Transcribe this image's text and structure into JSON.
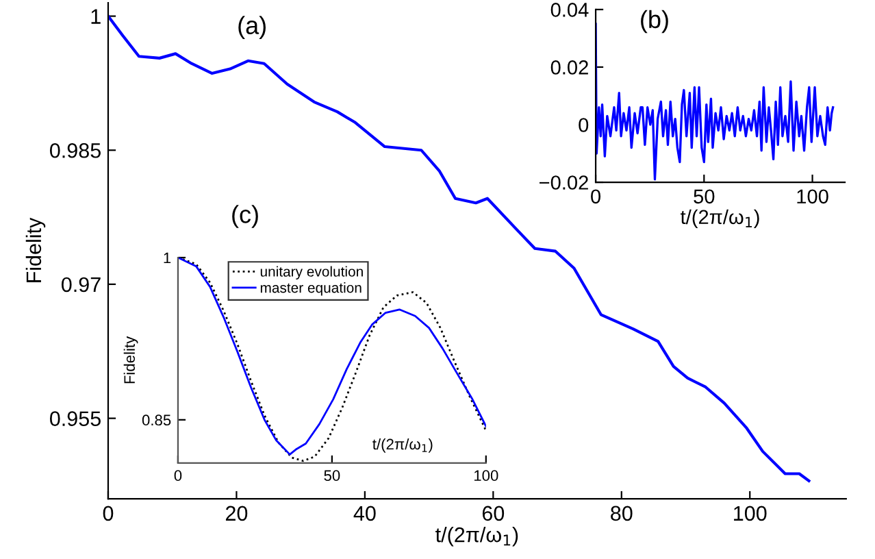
{
  "chart_data": [
    {
      "type": "line",
      "xlabel": "t/(2π/ω$_{1}$)",
      "ylabel": "Fidelity",
      "annotations": [
        "(a)"
      ],
      "xlim": [
        0,
        115
      ],
      "ylim": [
        0.946,
        1.0015
      ],
      "xticks": [
        0,
        20,
        40,
        60,
        80,
        100
      ],
      "yticks": [
        0.955,
        0.97,
        0.985,
        1
      ],
      "grid": false,
      "legend": false,
      "series": [
        {
          "color": "#0000ff",
          "line_style": "solid",
          "x": [
            0,
            2.3,
            4.8,
            8.0,
            10.5,
            13.0,
            16.2,
            19.0,
            21.8,
            24.3,
            27.9,
            32.1,
            35.7,
            38.5,
            43.1,
            48.8,
            51.6,
            54.1,
            57.3,
            59.1,
            63.7,
            66.5,
            69.7,
            72.6,
            76.8,
            81.8,
            85.7,
            88.1,
            90.3,
            93.1,
            96.0,
            99.5,
            102.0,
            105.5,
            107.7,
            109.2
          ],
          "values": [
            1.0,
            0.9978,
            0.9955,
            0.9953,
            0.9958,
            0.9947,
            0.9936,
            0.9941,
            0.995,
            0.9947,
            0.9924,
            0.9904,
            0.9893,
            0.9881,
            0.9854,
            0.985,
            0.9827,
            0.9796,
            0.9791,
            0.9796,
            0.9761,
            0.974,
            0.9737,
            0.9718,
            0.9666,
            0.965,
            0.9636,
            0.9608,
            0.9595,
            0.9585,
            0.9567,
            0.9539,
            0.9513,
            0.9488,
            0.9488,
            0.948
          ]
        }
      ]
    },
    {
      "type": "line",
      "xlabel": "t/(2π/ω$_{1}$)",
      "annotations": [
        "(b)"
      ],
      "xlim": [
        0,
        115
      ],
      "ylim": [
        -0.02,
        0.04
      ],
      "xticks": [
        0,
        50,
        100
      ],
      "yticks": [
        {
          "value": -0.02,
          "label": "−0.02"
        },
        0,
        0.02,
        0.04
      ],
      "grid": false,
      "legend": false,
      "series": [
        {
          "color": "#0000ff",
          "line_style": "solid",
          "x": [
            0,
            0.4,
            1.5,
            2.3,
            3.0,
            4.2,
            5.3,
            6.8,
            8.5,
            9.5,
            10.8,
            11.7,
            12.9,
            14.2,
            15.5,
            16.5,
            18.0,
            19.3,
            20.8,
            21.6,
            22.7,
            23.9,
            25.2,
            26.3,
            27.3,
            28.6,
            30.1,
            31.1,
            32.4,
            33.3,
            34.5,
            35.6,
            36.7,
            37.7,
            38.8,
            39.8,
            40.7,
            41.9,
            43.4,
            44.3,
            45.6,
            46.6,
            47.7,
            48.9,
            50.0,
            51.1,
            51.9,
            53.2,
            54.0,
            55.3,
            56.6,
            57.8,
            59.1,
            60.4,
            61.7,
            62.9,
            64.2,
            65.5,
            66.7,
            68.0,
            69.3,
            70.6,
            71.8,
            73.1,
            74.4,
            75.6,
            76.5,
            77.5,
            78.8,
            79.9,
            80.9,
            82.0,
            83.1,
            84.1,
            85.2,
            86.2,
            87.5,
            88.8,
            90.0,
            91.3,
            92.6,
            93.9,
            94.9,
            96.2,
            97.5,
            98.5,
            99.6,
            101.1,
            102.3,
            103.6,
            104.9,
            105.9,
            107.0,
            108.1,
            108.9,
            109.5
          ],
          "values": [
            0.035,
            -0.01,
            0.006,
            -0.004,
            0.007,
            -0.011,
            0.003,
            -0.004,
            0.006,
            -0.002,
            0.011,
            -0.004,
            0.004,
            -0.002,
            0.006,
            -0.008,
            0.004,
            -0.003,
            0.006,
            0.006,
            -0.007,
            0.006,
            0.0,
            0.005,
            -0.019,
            0.002,
            0.008,
            -0.004,
            0.005,
            -0.007,
            0.008,
            -0.004,
            0.002,
            -0.008,
            -0.013,
            0.007,
            0.012,
            -0.004,
            0.011,
            -0.008,
            0.013,
            -0.004,
            0.013,
            -0.008,
            -0.013,
            0.007,
            -0.006,
            0.009,
            -0.008,
            0.004,
            -0.002,
            0.006,
            -0.005,
            0.003,
            -0.002,
            0.004,
            -0.004,
            0.006,
            -0.002,
            0.003,
            -0.004,
            0.002,
            -0.002,
            0.005,
            -0.004,
            0.008,
            -0.009,
            0.013,
            -0.006,
            0.006,
            -0.002,
            -0.012,
            0.008,
            -0.007,
            0.013,
            -0.004,
            0.003,
            -0.006,
            0.015,
            -0.009,
            0.008,
            -0.004,
            0.003,
            -0.009,
            0.006,
            0.013,
            -0.006,
            0.013,
            -0.004,
            0.003,
            -0.004,
            -0.007,
            0.006,
            -0.002,
            0.004,
            0.006
          ]
        }
      ]
    },
    {
      "type": "line",
      "xlabel": "t/(2π/ω$_{1}$)",
      "ylabel": "Fidelity",
      "annotations": [
        "(c)"
      ],
      "xlim": [
        0,
        100
      ],
      "ylim": [
        0.81,
        1.0
      ],
      "xticks": [
        0,
        50,
        100
      ],
      "yticks": [
        0.85,
        1
      ],
      "grid": false,
      "legend": "top left",
      "series": [
        {
          "name": "unitary evolution",
          "color": "#000000",
          "line_style": "dotted",
          "x": [
            0,
            5.9,
            10.4,
            14.8,
            19.3,
            23.7,
            28.1,
            32.6,
            37.0,
            40.7,
            44.4,
            48.9,
            53.3,
            57.8,
            62.2,
            66.7,
            71.1,
            76.3,
            80.7,
            85.2,
            89.6,
            94.8,
            100
          ],
          "values": [
            1.0,
            0.994,
            0.977,
            0.951,
            0.92,
            0.886,
            0.854,
            0.829,
            0.815,
            0.812,
            0.816,
            0.833,
            0.861,
            0.894,
            0.928,
            0.954,
            0.965,
            0.968,
            0.958,
            0.935,
            0.905,
            0.871,
            0.84
          ]
        },
        {
          "name": "master equation",
          "color": "#0000ff",
          "line_style": "solid",
          "x": [
            0,
            5.9,
            10.4,
            14.8,
            19.3,
            23.7,
            28.1,
            31.9,
            36.3,
            38.5,
            41.5,
            45.9,
            50.4,
            54.8,
            59.3,
            63.0,
            67.4,
            71.9,
            77.0,
            81.5,
            85.9,
            90.4,
            95.6,
            100
          ],
          "values": [
            1.0,
            0.992,
            0.973,
            0.945,
            0.913,
            0.88,
            0.85,
            0.831,
            0.818,
            0.823,
            0.828,
            0.846,
            0.869,
            0.897,
            0.922,
            0.938,
            0.949,
            0.952,
            0.946,
            0.935,
            0.916,
            0.894,
            0.869,
            0.844
          ]
        }
      ]
    }
  ]
}
